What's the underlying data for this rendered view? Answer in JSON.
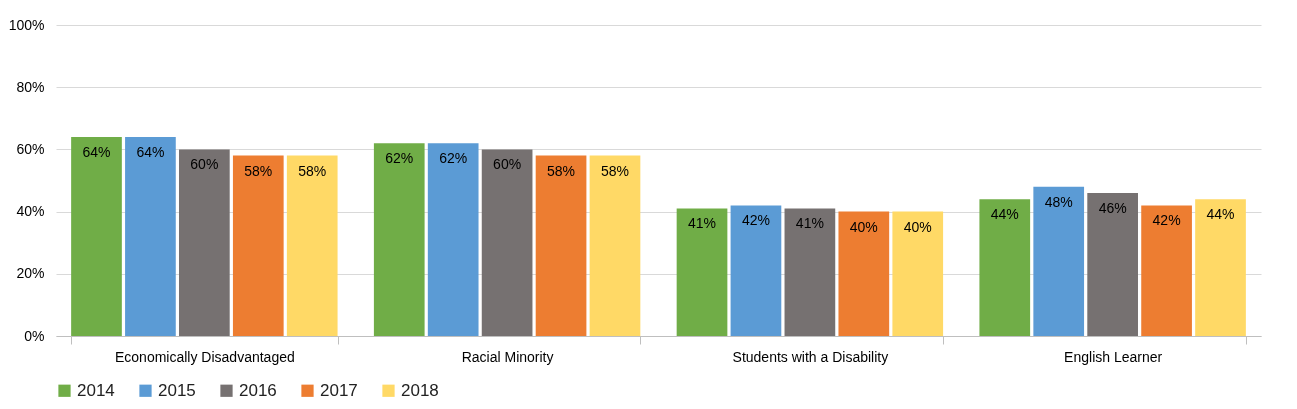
{
  "chart_data": {
    "type": "bar",
    "categories": [
      "Economically Disadvantaged",
      "Racial Minority",
      "Students with a Disability",
      "English Learner"
    ],
    "series": [
      {
        "name": "2014",
        "color": "#70ad47",
        "values": [
          64,
          62,
          41,
          44
        ],
        "value_labels": [
          "64%",
          "62%",
          "41%",
          "44%"
        ]
      },
      {
        "name": "2015",
        "color": "#5b9bd5",
        "values": [
          64,
          62,
          42,
          48
        ],
        "value_labels": [
          "64%",
          "62%",
          "42%",
          "48%"
        ]
      },
      {
        "name": "2016",
        "color": "#767171",
        "values": [
          60,
          60,
          41,
          46
        ],
        "value_labels": [
          "60%",
          "60%",
          "41%",
          "46%"
        ]
      },
      {
        "name": "2017",
        "color": "#ed7d31",
        "values": [
          58,
          58,
          40,
          42
        ],
        "value_labels": [
          "58%",
          "58%",
          "40%",
          "42%"
        ]
      },
      {
        "name": "2018",
        "color": "#ffd966",
        "values": [
          58,
          58,
          40,
          44
        ],
        "value_labels": [
          "58%",
          "58%",
          "40%",
          "44%"
        ]
      }
    ],
    "ylim": [
      0,
      100
    ],
    "yticks": [
      {
        "value": 0,
        "label": "0%"
      },
      {
        "value": 20,
        "label": "20%"
      },
      {
        "value": 40,
        "label": "40%"
      },
      {
        "value": 60,
        "label": "60%"
      },
      {
        "value": 80,
        "label": "80%"
      },
      {
        "value": 100,
        "label": "100%"
      }
    ],
    "grid": "y",
    "legend": "bottom"
  }
}
